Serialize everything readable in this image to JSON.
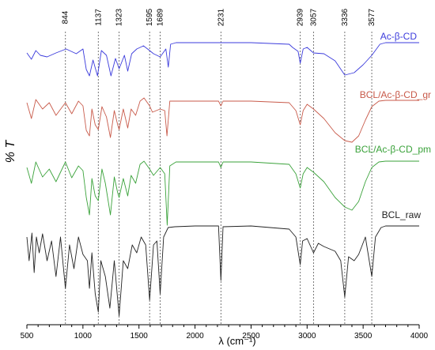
{
  "chart_data": {
    "type": "line",
    "xlabel": "λ (cm⁻¹)",
    "ylabel": "% T",
    "xlim": [
      500,
      4000
    ],
    "x_ticks": [
      500,
      1000,
      1500,
      2000,
      2500,
      3000,
      3500,
      4000
    ],
    "y_ticks": [],
    "grid": false,
    "legend": "series labels printed at right end of each trace",
    "band_markers": [
      844,
      1137,
      1323,
      1595,
      1689,
      2231,
      2939,
      3057,
      3336,
      3577
    ],
    "series": [
      {
        "name": "Ac-β-CD",
        "color": "#3b3bdc",
        "points": [
          [
            500,
            67
          ],
          [
            540,
            75
          ],
          [
            580,
            64
          ],
          [
            620,
            70
          ],
          [
            680,
            72
          ],
          [
            760,
            67
          ],
          [
            850,
            62
          ],
          [
            940,
            68
          ],
          [
            1000,
            62
          ],
          [
            1030,
            88
          ],
          [
            1058,
            96
          ],
          [
            1090,
            76
          ],
          [
            1130,
            96
          ],
          [
            1165,
            64
          ],
          [
            1210,
            70
          ],
          [
            1250,
            96
          ],
          [
            1290,
            74
          ],
          [
            1323,
            87
          ],
          [
            1370,
            70
          ],
          [
            1400,
            90
          ],
          [
            1435,
            68
          ],
          [
            1480,
            62
          ],
          [
            1540,
            58
          ],
          [
            1595,
            64
          ],
          [
            1630,
            68
          ],
          [
            1689,
            72
          ],
          [
            1740,
            62
          ],
          [
            1762,
            85
          ],
          [
            1782,
            56
          ],
          [
            1830,
            54
          ],
          [
            2000,
            54
          ],
          [
            2231,
            54
          ],
          [
            2500,
            54
          ],
          [
            2840,
            56
          ],
          [
            2870,
            60
          ],
          [
            2920,
            65
          ],
          [
            2939,
            80
          ],
          [
            2965,
            62
          ],
          [
            3000,
            60
          ],
          [
            3057,
            67
          ],
          [
            3150,
            68
          ],
          [
            3250,
            77
          ],
          [
            3336,
            95
          ],
          [
            3420,
            92
          ],
          [
            3500,
            82
          ],
          [
            3577,
            70
          ],
          [
            3650,
            56
          ],
          [
            3700,
            54
          ],
          [
            4000,
            54
          ]
        ]
      },
      {
        "name": "BCL/Ac-β-CD_gr",
        "color": "#c85a4a",
        "points": [
          [
            500,
            130
          ],
          [
            540,
            150
          ],
          [
            580,
            126
          ],
          [
            640,
            138
          ],
          [
            700,
            130
          ],
          [
            760,
            146
          ],
          [
            844,
            130
          ],
          [
            900,
            144
          ],
          [
            960,
            128
          ],
          [
            1000,
            134
          ],
          [
            1030,
            165
          ],
          [
            1058,
            172
          ],
          [
            1080,
            138
          ],
          [
            1110,
            158
          ],
          [
            1137,
            164
          ],
          [
            1170,
            135
          ],
          [
            1210,
            148
          ],
          [
            1245,
            174
          ],
          [
            1280,
            140
          ],
          [
            1310,
            158
          ],
          [
            1323,
            164
          ],
          [
            1360,
            138
          ],
          [
            1400,
            162
          ],
          [
            1430,
            138
          ],
          [
            1470,
            146
          ],
          [
            1510,
            128
          ],
          [
            1545,
            124
          ],
          [
            1595,
            134
          ],
          [
            1620,
            142
          ],
          [
            1689,
            138
          ],
          [
            1730,
            140
          ],
          [
            1750,
            172
          ],
          [
            1775,
            128
          ],
          [
            1830,
            128
          ],
          [
            2000,
            128
          ],
          [
            2210,
            128
          ],
          [
            2231,
            134
          ],
          [
            2250,
            128
          ],
          [
            2500,
            128
          ],
          [
            2840,
            130
          ],
          [
            2900,
            140
          ],
          [
            2939,
            158
          ],
          [
            2965,
            140
          ],
          [
            3000,
            132
          ],
          [
            3057,
            138
          ],
          [
            3150,
            150
          ],
          [
            3250,
            168
          ],
          [
            3336,
            178
          ],
          [
            3400,
            180
          ],
          [
            3460,
            172
          ],
          [
            3520,
            152
          ],
          [
            3577,
            135
          ],
          [
            3640,
            128
          ],
          [
            3700,
            127
          ],
          [
            4000,
            127
          ]
        ]
      },
      {
        "name": "BCL/Ac-β-CD_pm",
        "color": "#3aa23a",
        "points": [
          [
            500,
            212
          ],
          [
            540,
            232
          ],
          [
            580,
            205
          ],
          [
            640,
            224
          ],
          [
            700,
            214
          ],
          [
            760,
            230
          ],
          [
            844,
            205
          ],
          [
            900,
            225
          ],
          [
            960,
            210
          ],
          [
            1000,
            216
          ],
          [
            1030,
            250
          ],
          [
            1058,
            272
          ],
          [
            1080,
            226
          ],
          [
            1110,
            248
          ],
          [
            1137,
            254
          ],
          [
            1170,
            214
          ],
          [
            1200,
            232
          ],
          [
            1245,
            272
          ],
          [
            1280,
            224
          ],
          [
            1310,
            244
          ],
          [
            1323,
            250
          ],
          [
            1360,
            226
          ],
          [
            1400,
            248
          ],
          [
            1430,
            222
          ],
          [
            1470,
            232
          ],
          [
            1510,
            208
          ],
          [
            1545,
            204
          ],
          [
            1595,
            214
          ],
          [
            1630,
            222
          ],
          [
            1689,
            212
          ],
          [
            1730,
            220
          ],
          [
            1752,
            285
          ],
          [
            1775,
            210
          ],
          [
            1830,
            205
          ],
          [
            2000,
            205
          ],
          [
            2210,
            205
          ],
          [
            2231,
            212
          ],
          [
            2250,
            205
          ],
          [
            2500,
            205
          ],
          [
            2840,
            208
          ],
          [
            2900,
            220
          ],
          [
            2939,
            238
          ],
          [
            2965,
            220
          ],
          [
            3000,
            212
          ],
          [
            3057,
            218
          ],
          [
            3150,
            230
          ],
          [
            3250,
            250
          ],
          [
            3336,
            262
          ],
          [
            3400,
            266
          ],
          [
            3460,
            255
          ],
          [
            3520,
            230
          ],
          [
            3577,
            212
          ],
          [
            3640,
            205
          ],
          [
            3700,
            204
          ],
          [
            4000,
            204
          ]
        ]
      },
      {
        "name": "BCL_raw",
        "color": "#222222",
        "points": [
          [
            500,
            300
          ],
          [
            520,
            330
          ],
          [
            545,
            295
          ],
          [
            565,
            345
          ],
          [
            585,
            300
          ],
          [
            610,
            320
          ],
          [
            640,
            296
          ],
          [
            680,
            330
          ],
          [
            720,
            305
          ],
          [
            760,
            350
          ],
          [
            800,
            300
          ],
          [
            844,
            365
          ],
          [
            880,
            310
          ],
          [
            920,
            340
          ],
          [
            960,
            300
          ],
          [
            1000,
            322
          ],
          [
            1040,
            330
          ],
          [
            1058,
            365
          ],
          [
            1080,
            320
          ],
          [
            1110,
            372
          ],
          [
            1137,
            395
          ],
          [
            1160,
            330
          ],
          [
            1200,
            350
          ],
          [
            1240,
            390
          ],
          [
            1280,
            330
          ],
          [
            1323,
            400
          ],
          [
            1360,
            330
          ],
          [
            1400,
            340
          ],
          [
            1440,
            310
          ],
          [
            1480,
            320
          ],
          [
            1520,
            300
          ],
          [
            1560,
            310
          ],
          [
            1595,
            380
          ],
          [
            1630,
            310
          ],
          [
            1660,
            305
          ],
          [
            1689,
            372
          ],
          [
            1720,
            300
          ],
          [
            1760,
            288
          ],
          [
            1820,
            287
          ],
          [
            2000,
            286
          ],
          [
            2210,
            286
          ],
          [
            2231,
            355
          ],
          [
            2250,
            287
          ],
          [
            2500,
            286
          ],
          [
            2840,
            290
          ],
          [
            2900,
            300
          ],
          [
            2939,
            335
          ],
          [
            2960,
            305
          ],
          [
            3000,
            302
          ],
          [
            3057,
            320
          ],
          [
            3100,
            308
          ],
          [
            3150,
            312
          ],
          [
            3250,
            318
          ],
          [
            3300,
            330
          ],
          [
            3336,
            376
          ],
          [
            3370,
            325
          ],
          [
            3420,
            330
          ],
          [
            3460,
            322
          ],
          [
            3520,
            300
          ],
          [
            3577,
            350
          ],
          [
            3610,
            300
          ],
          [
            3660,
            288
          ],
          [
            3700,
            286
          ],
          [
            4000,
            286
          ]
        ]
      }
    ],
    "series_labels": [
      {
        "text": "Ac-β-CD",
        "color": "#3b3bdc"
      },
      {
        "text": "BCL/Ac-β-CD_gr",
        "color": "#c85a4a"
      },
      {
        "text": "BCL/Ac-β-CD_pm",
        "color": "#3aa23a"
      },
      {
        "text": "BCL_raw",
        "color": "#222222"
      }
    ]
  }
}
